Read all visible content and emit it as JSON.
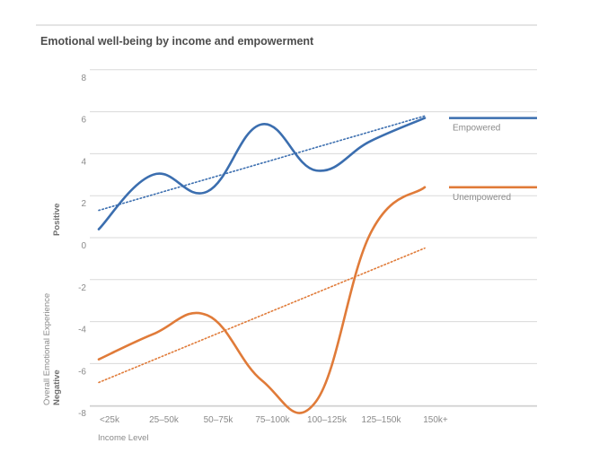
{
  "chart_data": {
    "type": "line",
    "title": "Emotional well-being by income and empowerment",
    "xlabel": "Income Level",
    "ylabel": "Overall Emotional Experience",
    "ylabel_positive": "Positive",
    "ylabel_negative": "Negative",
    "categories": [
      "<25k",
      "25–50k",
      "50–75k",
      "75–100k",
      "100–125k",
      "125–150k",
      "150k+"
    ],
    "y_ticks": [
      "8",
      "6",
      "4",
      "2",
      "0",
      "-2",
      "-4",
      "-6",
      "-8"
    ],
    "ylim": [
      -8.5,
      9
    ],
    "grid": true,
    "legend": "right",
    "series": [
      {
        "name": "Empowered",
        "color": "#3b6eaf",
        "values": [
          0.4,
          3.0,
          2.2,
          5.4,
          3.2,
          4.6,
          5.7
        ],
        "trend": [
          1.3,
          5.8
        ]
      },
      {
        "name": "Unempowered",
        "color": "#e07b39",
        "values": [
          -5.8,
          -4.6,
          -3.7,
          -6.8,
          -7.8,
          0.2,
          2.4
        ],
        "trend": [
          -6.9,
          -0.5
        ]
      }
    ]
  }
}
